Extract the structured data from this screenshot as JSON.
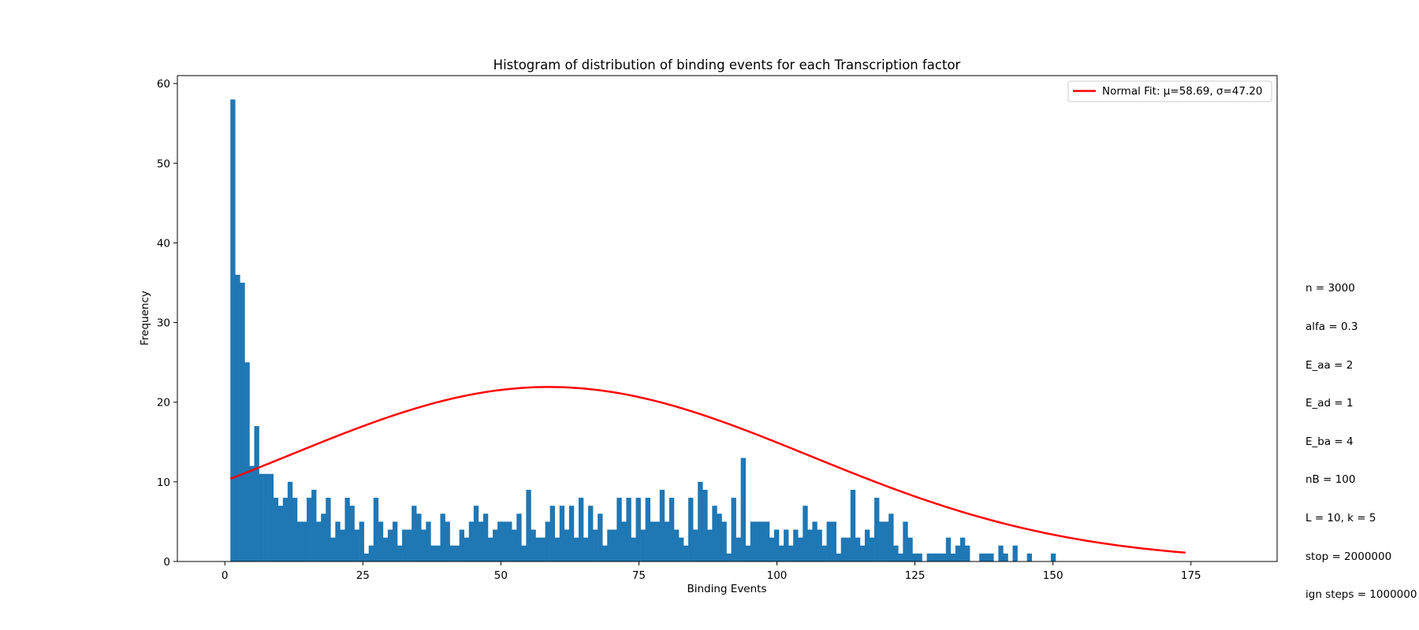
{
  "chart_data": {
    "type": "bar",
    "title": "Histogram of distribution of binding events for each Transcription factor",
    "xlabel": "Binding Events",
    "ylabel": "Frequency",
    "xlim": [
      -8.6,
      190.6
    ],
    "ylim": [
      0,
      61
    ],
    "xticks": [
      0,
      25,
      50,
      75,
      100,
      125,
      150,
      175
    ],
    "yticks": [
      0,
      10,
      20,
      30,
      40,
      50,
      60
    ],
    "bin_start": 1,
    "bin_width": 0.864,
    "bar_color": "#1f77b4",
    "values": [
      58,
      36,
      35,
      25,
      12,
      17,
      11,
      11,
      11,
      8,
      7,
      8,
      10,
      8,
      5,
      5,
      8,
      9,
      5,
      6,
      8,
      3,
      5,
      4,
      8,
      7,
      4,
      5,
      1,
      2,
      8,
      5,
      3,
      4,
      5,
      2,
      4,
      4,
      7,
      6,
      4,
      5,
      2,
      2,
      6,
      5,
      2,
      2,
      4,
      3,
      5,
      7,
      5,
      6,
      3,
      4,
      5,
      5,
      5,
      4,
      6,
      2,
      9,
      4,
      3,
      3,
      5,
      7,
      3,
      7,
      4,
      7,
      3,
      8,
      3,
      7,
      4,
      6,
      2,
      4,
      4,
      8,
      5,
      8,
      3,
      8,
      4,
      8,
      5,
      5,
      9,
      5,
      8,
      4,
      3,
      2,
      8,
      4,
      10,
      9,
      4,
      7,
      6,
      5,
      1,
      8,
      3,
      13,
      2,
      5,
      5,
      5,
      5,
      3,
      4,
      2,
      4,
      2,
      4,
      3,
      7,
      4,
      5,
      4,
      2,
      5,
      5,
      1,
      3,
      3,
      9,
      3,
      2,
      4,
      3,
      8,
      5,
      5,
      6,
      2,
      1,
      5,
      3,
      1,
      1,
      0,
      1,
      1,
      1,
      1,
      3,
      1,
      2,
      3,
      2,
      0,
      0,
      1,
      1,
      1,
      0,
      2,
      1,
      0,
      2,
      0,
      0,
      1,
      0,
      0,
      0,
      0,
      1
    ],
    "series": [
      {
        "name": "Normal Fit: μ=58.69, σ=47.20",
        "type": "line",
        "color": "#ff0000",
        "mu": 58.69,
        "sigma": 47.2,
        "x_range": [
          1,
          174
        ],
        "scale": 2592
      }
    ],
    "legend": "top-right",
    "grid": false
  },
  "annotation": {
    "lines": [
      "n = 3000",
      "alfa = 0.3",
      "E_aa = 2",
      "E_ad = 1",
      "E_ba = 4",
      "nB = 100",
      "L = 10, k = 5",
      "stop = 2000000",
      "ign steps = 1000000"
    ]
  }
}
